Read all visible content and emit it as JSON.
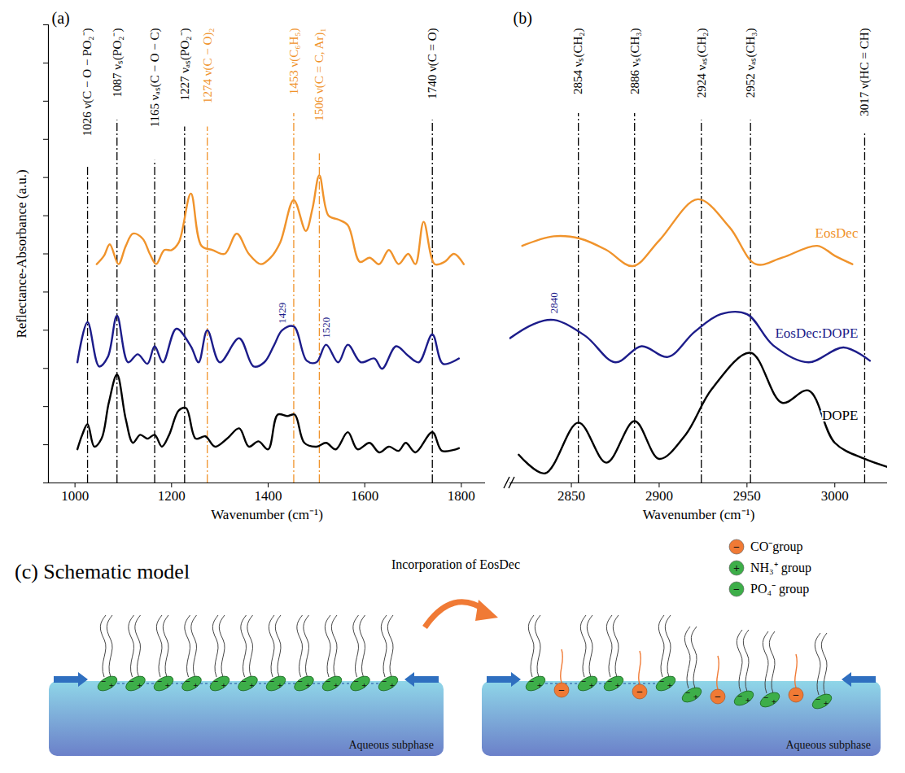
{
  "chart_data": [
    {
      "type": "line",
      "panel": "(a)",
      "x_label": "Wavenumber (cm⁻¹)",
      "y_label": "Reflectance-Absorbance (a.u.)",
      "xlim": [
        945,
        1850
      ],
      "xticks": [
        1000,
        1200,
        1400,
        1600,
        1800
      ],
      "ylim": [
        0,
        12
      ],
      "yticks": [
        0,
        1,
        2,
        3,
        4,
        5,
        6,
        7,
        8,
        9,
        10,
        11,
        12
      ],
      "tick_labels": "x",
      "series": [
        {
          "name": "EosDec",
          "color": "#F0932B",
          "x": [
            1045,
            1060,
            1072,
            1090,
            1105,
            1120,
            1140,
            1155,
            1168,
            1185,
            1200,
            1215,
            1240,
            1262,
            1285,
            1310,
            1335,
            1360,
            1385,
            1405,
            1425,
            1453,
            1478,
            1492,
            1506,
            1525,
            1545,
            1565,
            1590,
            1610,
            1630,
            1650,
            1670,
            1690,
            1705,
            1722,
            1745,
            1765,
            1785,
            1805
          ],
          "values": [
            5.73,
            5.95,
            6.25,
            5.73,
            6.2,
            6.53,
            6.4,
            6.0,
            5.73,
            6.1,
            6.1,
            6.3,
            7.58,
            6.21,
            6.1,
            6.0,
            6.53,
            6.0,
            5.73,
            5.9,
            6.3,
            7.41,
            6.6,
            7.2,
            8.06,
            7.0,
            6.9,
            6.75,
            5.79,
            5.9,
            5.73,
            6.1,
            5.73,
            6.0,
            5.73,
            6.84,
            5.73,
            5.79,
            6.0,
            5.73
          ]
        },
        {
          "name": "EosDec:DOPE",
          "color": "#1C1C8A",
          "x": [
            1005,
            1026,
            1050,
            1068,
            1087,
            1110,
            1130,
            1150,
            1165,
            1182,
            1210,
            1240,
            1256,
            1274,
            1300,
            1340,
            1370,
            1392,
            1412,
            1429,
            1453,
            1480,
            1500,
            1520,
            1545,
            1565,
            1592,
            1620,
            1636,
            1665,
            1690,
            1712,
            1740,
            1762,
            1795
          ],
          "values": [
            3.16,
            4.21,
            3.05,
            3.3,
            4.38,
            3.16,
            3.37,
            3.12,
            3.58,
            3.16,
            4.04,
            3.58,
            3.16,
            4.0,
            3.16,
            3.79,
            3.05,
            3.16,
            3.6,
            4.0,
            4.1,
            3.2,
            3.16,
            3.62,
            3.16,
            3.62,
            3.16,
            3.26,
            2.99,
            3.58,
            3.33,
            3.16,
            3.89,
            3.12,
            3.26
          ]
        },
        {
          "name": "DOPE",
          "color": "#000000",
          "x": [
            1005,
            1015,
            1026,
            1040,
            1055,
            1070,
            1087,
            1105,
            1120,
            1135,
            1150,
            1165,
            1180,
            1195,
            1215,
            1230,
            1250,
            1270,
            1290,
            1315,
            1340,
            1360,
            1380,
            1400,
            1420,
            1440,
            1455,
            1475,
            1500,
            1520,
            1540,
            1565,
            1585,
            1610,
            1630,
            1650,
            1670,
            1685,
            1705,
            1740,
            1760,
            1795
          ],
          "values": [
            0.88,
            1.26,
            1.54,
            0.95,
            1.16,
            2.1,
            2.84,
            1.68,
            1.05,
            1.26,
            1.16,
            1.26,
            0.95,
            1.26,
            1.9,
            1.96,
            1.16,
            1.22,
            0.95,
            1.16,
            1.43,
            0.95,
            1.09,
            0.88,
            1.79,
            1.75,
            1.79,
            1.05,
            0.95,
            1.05,
            0.88,
            1.33,
            0.88,
            1.05,
            0.8,
            0.95,
            0.84,
            1.05,
            0.8,
            1.33,
            0.84,
            0.91
          ]
        }
      ],
      "annotations": [
        {
          "x": 1026,
          "label": "1026 ν(C − O − PO₂⁻)",
          "color": "#000000",
          "line_style": "dashdot"
        },
        {
          "x": 1087,
          "label": "1087 νₛ(PO₂⁻)",
          "color": "#000000",
          "line_style": "dashdot"
        },
        {
          "x": 1165,
          "label": "1165 νₐₛ(C − O − C)",
          "color": "#000000",
          "line_style": "dashdot"
        },
        {
          "x": 1227,
          "label": "1227 νₐₛ(PO₂⁻)",
          "color": "#000000",
          "line_style": "dashdot"
        },
        {
          "x": 1274,
          "label": "1274 ν(C − O)₂",
          "color": "#F0932B",
          "line_style": "dashdot"
        },
        {
          "x": 1453,
          "label": "1453 ν(C₆H₅)",
          "color": "#F0932B",
          "line_style": "dashdot"
        },
        {
          "x": 1506,
          "label": "1506 ν(C = C, Ar)₁",
          "color": "#F0932B",
          "line_style": "dashdot"
        },
        {
          "x": 1740,
          "label": "1740 ν(C = O)",
          "color": "#000000",
          "line_style": "dashdot"
        },
        {
          "x": 1429,
          "label": "1429",
          "color": "#1C1C8A",
          "line_style": "none",
          "series": "EosDec:DOPE"
        },
        {
          "x": 1520,
          "label": "1520",
          "color": "#1C1C8A",
          "line_style": "none",
          "series": "EosDec:DOPE"
        }
      ]
    },
    {
      "type": "line",
      "panel": "(b)",
      "x_label": "Wavenumber (cm⁻¹)",
      "xlim": [
        2815,
        3030
      ],
      "xticks": [
        2850,
        2900,
        2950,
        3000
      ],
      "ylim": [
        0,
        12
      ],
      "tick_labels": "x",
      "legend": "right",
      "series": [
        {
          "name": "EosDec",
          "color": "#F0932B",
          "x": [
            2822,
            2840,
            2855,
            2870,
            2885,
            2900,
            2922,
            2940,
            2955,
            2970,
            2990,
            3000,
            3010
          ],
          "values": [
            6.21,
            6.46,
            6.4,
            6.1,
            5.68,
            6.35,
            7.43,
            6.7,
            5.73,
            5.9,
            6.21,
            5.95,
            5.73
          ]
        },
        {
          "name": "EosDec:DOPE",
          "color": "#1C1C8A",
          "x": [
            2815,
            2828,
            2840,
            2858,
            2875,
            2890,
            2905,
            2920,
            2935,
            2950,
            2965,
            2985,
            3005,
            3020
          ],
          "values": [
            3.79,
            4.15,
            4.27,
            3.85,
            3.16,
            3.58,
            3.3,
            3.95,
            4.42,
            4.42,
            3.6,
            3.16,
            3.55,
            3.2
          ]
        },
        {
          "name": "DOPE",
          "color": "#000000",
          "x": [
            2820,
            2835,
            2854,
            2870,
            2886,
            2900,
            2915,
            2930,
            2952,
            2970,
            2985,
            3000,
            3017,
            3030
          ],
          "values": [
            0.74,
            0.25,
            1.58,
            0.53,
            1.62,
            0.63,
            1.26,
            2.46,
            3.41,
            2.1,
            2.42,
            1.05,
            0.63,
            0.42
          ]
        }
      ],
      "annotations": [
        {
          "x": 2854,
          "label": "2854 νₛ(CH₂)",
          "color": "#000000",
          "line_style": "dashdot"
        },
        {
          "x": 2886,
          "label": "2886 νₛ(CH₃)",
          "color": "#000000",
          "line_style": "dashdot"
        },
        {
          "x": 2924,
          "label": "2924 νₐₛ(CH₂)",
          "color": "#000000",
          "line_style": "dashdot"
        },
        {
          "x": 2952,
          "label": "2952 νₐₛ(CH₃)",
          "color": "#000000",
          "line_style": "dashdot"
        },
        {
          "x": 3017,
          "label": "3017 ν(HC = CH)",
          "color": "#000000",
          "line_style": "dashdot"
        },
        {
          "x": 2840,
          "label": "2840",
          "color": "#1C1C8A",
          "line_style": "none",
          "series": "EosDec:DOPE"
        }
      ]
    }
  ],
  "schematic": {
    "title": "(c) Schematic model",
    "arrow_label": "Incorporation of EosDec",
    "legend": [
      {
        "label": "CO⁻group",
        "color": "#F07A35",
        "sign": "−"
      },
      {
        "label": "NH₃⁺ group",
        "color": "#3DAE49",
        "sign": "+"
      },
      {
        "label": "PO₄⁻ group",
        "color": "#3DAE49",
        "sign": "−"
      }
    ],
    "headgroup_signs": [
      "+",
      "−"
    ],
    "panels": [
      {
        "label": "Aqueous subphase",
        "eosdec": false
      },
      {
        "label": "Aqueous subphase",
        "eosdec": true
      }
    ]
  }
}
